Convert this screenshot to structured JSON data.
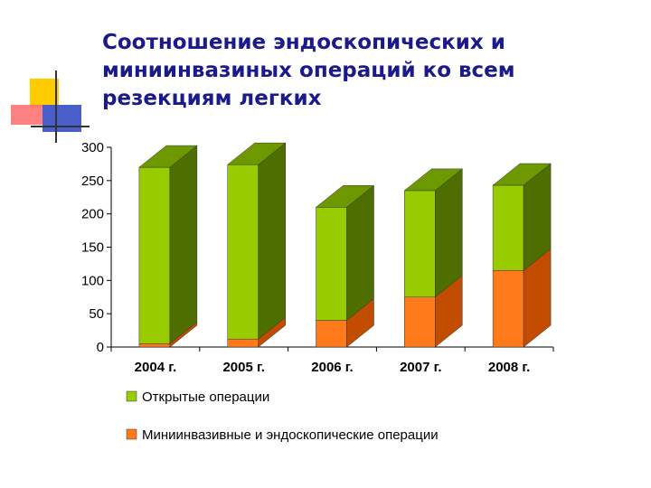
{
  "title_lines": [
    "Соотношение эндоскопических и",
    "миниинвазиных операций ко всем",
    "резекциям легких"
  ],
  "chart_data": {
    "type": "bar",
    "stacked": true,
    "three_d": true,
    "categories": [
      "2004 г.",
      "2005 г.",
      "2006 г.",
      "2007 г.",
      "2008 г."
    ],
    "series": [
      {
        "name": "Миниинвазивные и эндоскопические операции",
        "values": [
          5,
          12,
          40,
          75,
          115
        ],
        "color": "#ff7a1a",
        "side_color": "#c24c00",
        "top_color": "#e06010"
      },
      {
        "name": "Открытые операции",
        "values": [
          265,
          262,
          170,
          160,
          128
        ],
        "color": "#99cc00",
        "side_color": "#4f6e00",
        "top_color": "#6e9800"
      }
    ],
    "legend_order": [
      "Открытые операции",
      "Миниинвазивные и эндоскопические операции"
    ],
    "yticks": [
      0,
      50,
      100,
      150,
      200,
      250,
      300
    ],
    "ylim": [
      0,
      300
    ],
    "grid": false,
    "legend_position": "bottom"
  }
}
